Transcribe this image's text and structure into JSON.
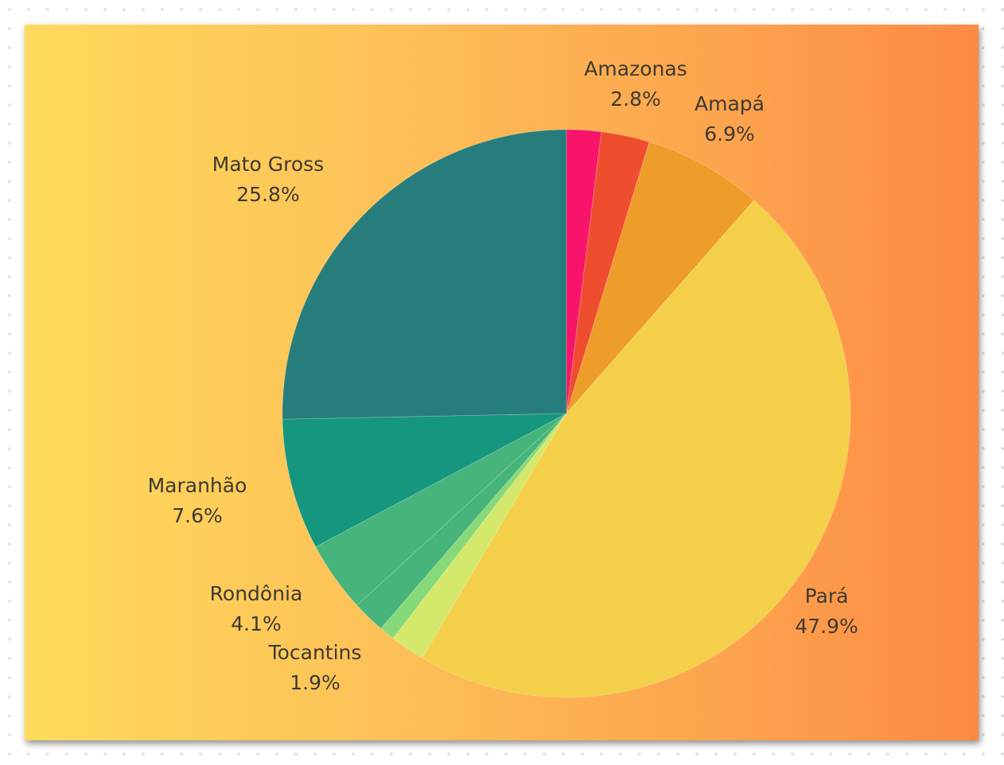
{
  "chart_data": {
    "type": "pie",
    "title": "",
    "slices": [
      {
        "label": "",
        "percent": "",
        "value": 2.0,
        "color": "#f7146a"
      },
      {
        "label": "Amazonas",
        "percent": "2.8%",
        "value": 2.8,
        "color": "#ee4e2e"
      },
      {
        "label": "Amapá",
        "percent": "6.9%",
        "value": 6.9,
        "color": "#ee9c2a"
      },
      {
        "label": "Pará",
        "percent": "47.9%",
        "value": 47.9,
        "color": "#f4d04a"
      },
      {
        "label": "",
        "percent": "",
        "value": 2.0,
        "color": "#d4e86b"
      },
      {
        "label": "",
        "percent": "",
        "value": 0.9,
        "color": "#86d978"
      },
      {
        "label": "Tocantins",
        "percent": "1.9%",
        "value": 1.9,
        "color": "#46b47b"
      },
      {
        "label": "Rondônia",
        "percent": "4.1%",
        "value": 4.1,
        "color": "#46b47b"
      },
      {
        "label": "Maranhão",
        "percent": "7.6%",
        "value": 7.6,
        "color": "#15967e"
      },
      {
        "label": "Mato Gross",
        "percent": "25.8%",
        "value": 25.8,
        "color": "#267d7c"
      }
    ]
  }
}
